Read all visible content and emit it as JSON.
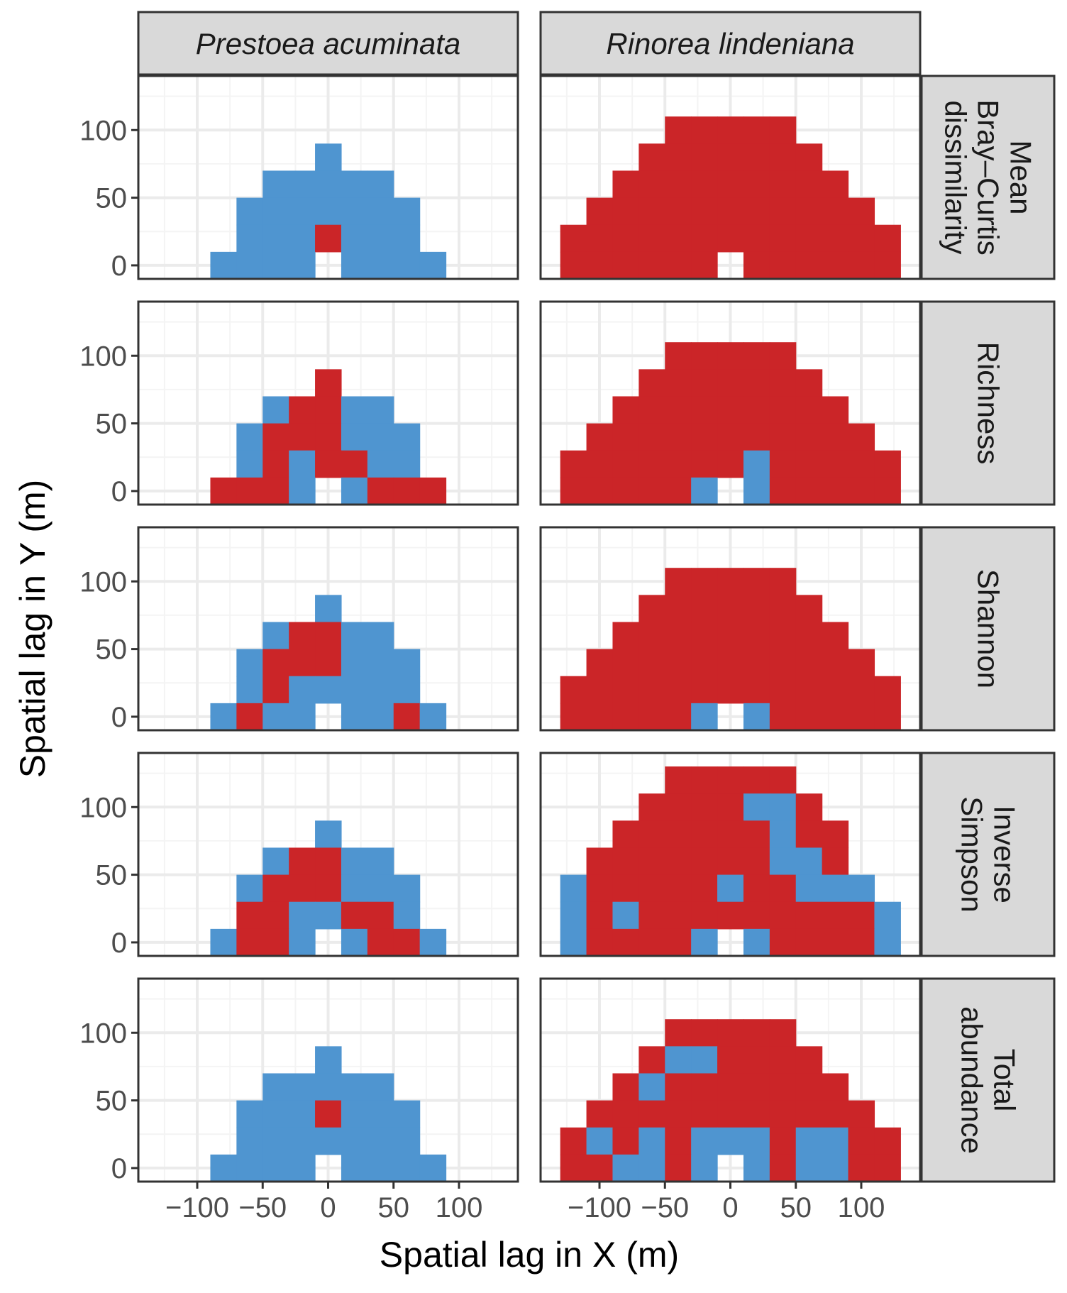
{
  "chart_data": {
    "type": "heatmap",
    "xlabel": "Spatial lag in X (m)",
    "ylabel": "Spatial lag in Y (m)",
    "xlim": [
      -145,
      145
    ],
    "ylim": [
      -10,
      140
    ],
    "x_ticks": [
      -100,
      -50,
      0,
      50,
      100
    ],
    "y_ticks": [
      0,
      50,
      100
    ],
    "x_tick_labels": [
      "−100",
      "−50",
      "0",
      "50",
      "100"
    ],
    "y_tick_labels": [
      "0",
      "50",
      "100"
    ],
    "cell_width": 20,
    "cell_height": 20,
    "cell_x_centers": [
      -120,
      -100,
      -80,
      -60,
      -40,
      -20,
      0,
      20,
      40,
      60,
      80,
      100,
      120
    ],
    "cell_y_centers": [
      0,
      20,
      40,
      60,
      80,
      100,
      120
    ],
    "grid": true,
    "colors": {
      "blue": "#4f95d0",
      "red": "#cb2528",
      "empty": "#ffffff",
      "panel_border": "#333333",
      "strip_fill": "#d9d9d9",
      "gridline": "#ebebeb"
    },
    "columns": [
      "Prestoea acuminata",
      "Rinorea lindeniana"
    ],
    "rows": [
      {
        "label_lines": [
          "Mean",
          "Bray–Curtis",
          "dissimilarity"
        ]
      },
      {
        "label_lines": [
          "Richness"
        ]
      },
      {
        "label_lines": [
          "Shannon"
        ]
      },
      {
        "label_lines": [
          "Inverse",
          "Simpson"
        ]
      },
      {
        "label_lines": [
          "Total",
          "abundance"
        ]
      }
    ],
    "legend": "Cells: B = blue, R = red, . = empty. Each string is one row of cells from y=120 (top) down to y=0, columns from x=-120 to x=120 in 20 m steps.",
    "panels": [
      [
        {
          "column": "Prestoea acuminata",
          "row": "Mean Bray–Curtis dissimilarity",
          "cells": [
            ".............",
            "......B......",
            "....BBBBB....",
            "...BBBBBBB...",
            "...BBBRBBB...",
            "..BBBB.BBBB.."
          ]
        },
        {
          "column": "Rinorea lindeniana",
          "row": "Mean Bray–Curtis dissimilarity",
          "cells": [
            "....RRRRR....",
            "...RRRRRRR...",
            "..RRRRRRRRR..",
            ".RRRRRRRRRRR.",
            "RRRRRRRRRRRRR",
            "RRRRRR.RRRRRR"
          ]
        }
      ],
      [
        {
          "column": "Prestoea acuminata",
          "row": "Richness",
          "cells": [
            ".............",
            "......R......",
            "....BRRBB....",
            "...BRRRBBB...",
            "...BRBRRBB...",
            "..RRRB.BRRR.."
          ]
        },
        {
          "column": "Rinorea lindeniana",
          "row": "Richness",
          "cells": [
            "....RRRRR....",
            "...RRRRRRR...",
            "..RRRRRRRRR..",
            ".RRRRRRRRRRR.",
            "RRRRRRRBRRRRR",
            "RRRRRB.BRRRRR"
          ]
        }
      ],
      [
        {
          "column": "Prestoea acuminata",
          "row": "Shannon",
          "cells": [
            ".............",
            "......B......",
            "....BRRBB....",
            "...BRRRBBB...",
            "...BRBBBBB...",
            "..BRBB.BBRB.."
          ]
        },
        {
          "column": "Rinorea lindeniana",
          "row": "Shannon",
          "cells": [
            "....RRRRR....",
            "...RRRRRRR...",
            "..RRRRRRRRR..",
            ".RRRRRRRRRRR.",
            "RRRRRRRRRRRRR",
            "RRRRRB.BRRRRR"
          ]
        }
      ],
      [
        {
          "column": "Prestoea acuminata",
          "row": "Inverse Simpson",
          "cells": [
            ".............",
            "......B......",
            "....BRRBB....",
            "...BRRRBBB...",
            "...RRBBRRB...",
            "..BRRB.BRRB.."
          ]
        },
        {
          "column": "Rinorea lindeniana",
          "row": "Inverse Simpson",
          "cells": [
            "....RRRRR....",
            "...RRRRBBR...",
            "..RRRRRRBRR..",
            ".RRRRRRRBBR..",
            "BRRRRRBRRBBB.",
            "BRBRRRRRRRRRB",
            "BRRRRB.BRRRRB"
          ]
        }
      ],
      [
        {
          "column": "Prestoea acuminata",
          "row": "Total abundance",
          "cells": [
            ".............",
            "......B......",
            "....BBBBB....",
            "...BBBRBBB...",
            "...BBBBBBB...",
            "..BBBB.BBBB.."
          ]
        },
        {
          "column": "Rinorea lindeniana",
          "row": "Total abundance",
          "cells": [
            "....RRRRR....",
            "...RBBRRRR...",
            "..RBRRRRRRR..",
            ".RRRRRRRRRRR.",
            "RBRBRBBBRBBRR",
            "RRBBRB.BRBBRR"
          ]
        }
      ]
    ]
  }
}
